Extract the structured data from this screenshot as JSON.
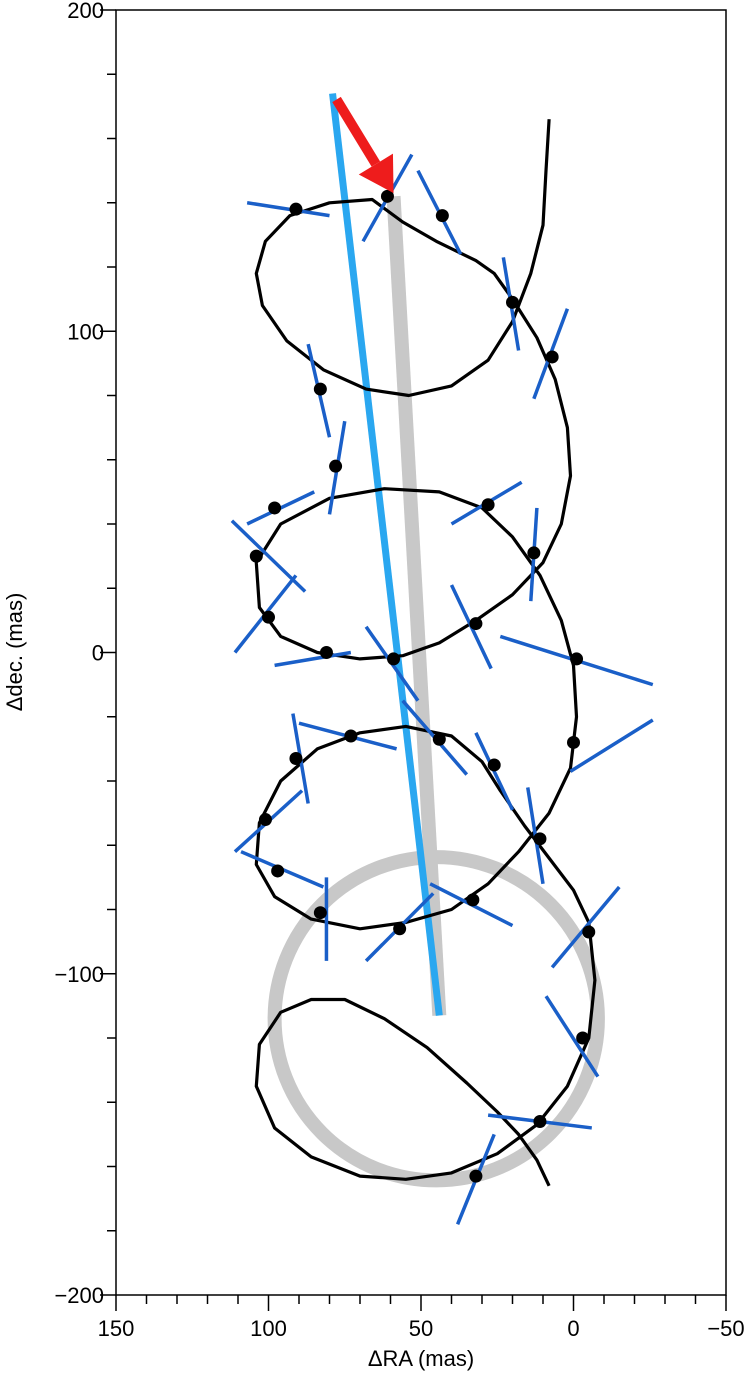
{
  "chart_data": {
    "type": "line",
    "xlabel": "ΔRA (mas)",
    "ylabel": "Δdec. (mas)",
    "xlim": [
      150,
      -50
    ],
    "ylim": [
      -200,
      200
    ],
    "x_reversed": true,
    "x_ticks": [
      150,
      100,
      50,
      0,
      -50
    ],
    "x_tick_labels": [
      "150",
      "100",
      "50",
      "0",
      "−50"
    ],
    "y_ticks": [
      200,
      100,
      0,
      -100,
      -200
    ],
    "y_tick_labels": [
      "200",
      "100",
      "0",
      "−100",
      "−200"
    ],
    "grid": false,
    "legend": "none",
    "colors": {
      "orbit": "#000000",
      "residuals": "#1a5fc8",
      "proper_motion_fit": "#2aa7f0",
      "reference_motion": "#c8c8c8",
      "arrow": "#ee1c1c"
    },
    "series": [
      {
        "role": "orbit",
        "x": [
          8,
          15,
          20,
          23,
          20,
          10,
          0,
          -6,
          -5,
          0,
          10,
          25,
          35,
          52,
          68,
          80,
          85,
          80,
          62,
          40,
          22,
          8,
          0,
          0,
          8,
          25,
          50,
          68,
          90,
          105,
          103,
          90,
          75,
          62,
          55,
          45,
          30,
          15,
          5,
          -2,
          -6,
          -4,
          5,
          20,
          45,
          70,
          85,
          98,
          105,
          100,
          85,
          70,
          60,
          50,
          35,
          20,
          8,
          0,
          -3,
          0,
          5,
          20,
          45,
          75,
          95,
          100,
          88,
          70,
          55,
          40,
          28,
          15,
          5,
          -3
        ],
        "y": [
          166,
          150,
          133,
          120,
          110,
          100,
          88,
          72,
          58,
          45,
          34,
          23,
          16,
          10,
          5,
          2,
          0,
          -3,
          -6,
          -3,
          5,
          18,
          32,
          46,
          56,
          62,
          65,
          64,
          58,
          42,
          25,
          12,
          2,
          -2,
          0,
          3,
          8,
          14,
          22,
          32,
          52,
          70,
          82,
          90,
          95,
          94,
          88,
          80,
          70,
          60,
          52,
          46,
          45,
          45,
          46,
          50,
          56,
          64,
          78,
          95,
          105,
          112,
          116,
          115,
          110,
          100,
          88,
          80,
          78,
          80,
          85,
          92,
          102,
          114
        ],
        "note_y_offset": 0
      },
      {
        "role": "orbit-y-values",
        "y_true": [
          166,
          150,
          133,
          120,
          110,
          100,
          88,
          72,
          58,
          45,
          34,
          23,
          16,
          10,
          5,
          2,
          0,
          -3,
          -6,
          -3,
          5,
          18,
          32,
          46,
          56,
          62,
          65,
          64,
          58,
          42,
          25,
          12,
          2,
          -2,
          0,
          3,
          8,
          14,
          22,
          32,
          52,
          70,
          82,
          90,
          95,
          94,
          88,
          80,
          70,
          60,
          52,
          46,
          45,
          45,
          46,
          50,
          56,
          64,
          78,
          95,
          105,
          112,
          116,
          115,
          110,
          100,
          88,
          80,
          78,
          80,
          85,
          92,
          102,
          114
        ]
      }
    ],
    "observations": [
      {
        "x": 61,
        "y": 142
      },
      {
        "x": 91,
        "y": 138
      },
      {
        "x": 43,
        "y": 136
      },
      {
        "x": 20,
        "y": 109
      },
      {
        "x": 7,
        "y": 92
      },
      {
        "x": 83,
        "y": 82
      },
      {
        "x": 78,
        "y": 58
      },
      {
        "x": 98,
        "y": 45
      },
      {
        "x": 28,
        "y": 46
      },
      {
        "x": 104,
        "y": 30
      },
      {
        "x": 13,
        "y": 31
      },
      {
        "x": 100,
        "y": 11
      },
      {
        "x": 32,
        "y": 9
      },
      {
        "x": 81,
        "y": 0
      },
      {
        "x": 59,
        "y": -2
      },
      {
        "x": -1,
        "y": -2
      },
      {
        "x": 73,
        "y": -26
      },
      {
        "x": 44,
        "y": -27
      },
      {
        "x": 0,
        "y": -28
      },
      {
        "x": 91,
        "y": -33
      },
      {
        "x": 26,
        "y": -35
      },
      {
        "x": 101,
        "y": -52
      },
      {
        "x": 11,
        "y": -58
      },
      {
        "x": 97,
        "y": -68
      },
      {
        "x": 33,
        "y": -77
      },
      {
        "x": 83,
        "y": -81
      },
      {
        "x": 57,
        "y": -86
      },
      {
        "x": -5,
        "y": -87
      },
      {
        "x": -3,
        "y": -120
      },
      {
        "x": 11,
        "y": -146
      },
      {
        "x": 32,
        "y": -163
      }
    ],
    "residual_ticks": [
      {
        "x1": 53,
        "y1": 155,
        "x2": 69,
        "y2": 128
      },
      {
        "x1": 80,
        "y1": 136,
        "x2": 107,
        "y2": 140
      },
      {
        "x1": 51,
        "y1": 150,
        "x2": 37,
        "y2": 124
      },
      {
        "x1": 23,
        "y1": 123,
        "x2": 18,
        "y2": 94
      },
      {
        "x1": 2,
        "y1": 107,
        "x2": 13,
        "y2": 79
      },
      {
        "x1": 87,
        "y1": 96,
        "x2": 80,
        "y2": 67
      },
      {
        "x1": 75,
        "y1": 72,
        "x2": 80,
        "y2": 43
      },
      {
        "x1": 107,
        "y1": 40,
        "x2": 85,
        "y2": 50
      },
      {
        "x1": 40,
        "y1": 40,
        "x2": 17,
        "y2": 53
      },
      {
        "x1": 112,
        "y1": 41,
        "x2": 88,
        "y2": 19
      },
      {
        "x1": 12,
        "y1": 45,
        "x2": 14,
        "y2": 16
      },
      {
        "x1": 111,
        "y1": 0,
        "x2": 91,
        "y2": 24
      },
      {
        "x1": 40,
        "y1": 21,
        "x2": 27,
        "y2": -5
      },
      {
        "x1": 98,
        "y1": -4,
        "x2": 73,
        "y2": 0
      },
      {
        "x1": 68,
        "y1": 8,
        "x2": 51,
        "y2": -15
      },
      {
        "x1": 24,
        "y1": 5,
        "x2": -26,
        "y2": -10
      },
      {
        "x1": 90,
        "y1": -22,
        "x2": 58,
        "y2": -30
      },
      {
        "x1": 56,
        "y1": -15,
        "x2": 35,
        "y2": -38
      },
      {
        "x1": 1,
        "y1": -37,
        "x2": -26,
        "y2": -21
      },
      {
        "x1": 92,
        "y1": -19,
        "x2": 87,
        "y2": -47
      },
      {
        "x1": 32,
        "y1": -25,
        "x2": 20,
        "y2": -49
      },
      {
        "x1": 111,
        "y1": -62,
        "x2": 89,
        "y2": -43
      },
      {
        "x1": 15,
        "y1": -42,
        "x2": 10,
        "y2": -72
      },
      {
        "x1": 109,
        "y1": -62,
        "x2": 82,
        "y2": -73
      },
      {
        "x1": 47,
        "y1": -72,
        "x2": 20,
        "y2": -85
      },
      {
        "x1": 81,
        "y1": -70,
        "x2": 81,
        "y2": -96
      },
      {
        "x1": 68,
        "y1": -96,
        "x2": 46,
        "y2": -75
      },
      {
        "x1": 7,
        "y1": -98,
        "x2": -15,
        "y2": -73
      },
      {
        "x1": 9,
        "y1": -107,
        "x2": -8,
        "y2": -132
      },
      {
        "x1": 28,
        "y1": -144,
        "x2": -6,
        "y2": -148
      },
      {
        "x1": 38,
        "y1": -178,
        "x2": 26,
        "y2": -150
      }
    ],
    "proper_motion_fit": {
      "x1": 79,
      "y1": 174,
      "x2": 44,
      "y2": -113
    },
    "reference_motion": {
      "x1": 59,
      "y1": 142,
      "x2": 44,
      "y2": -113
    },
    "reference_circle": {
      "cx": 45,
      "cy": -114,
      "r": 53
    },
    "arrow": {
      "x1": 79,
      "y1": 174,
      "x2": 59,
      "y2": 143
    }
  }
}
